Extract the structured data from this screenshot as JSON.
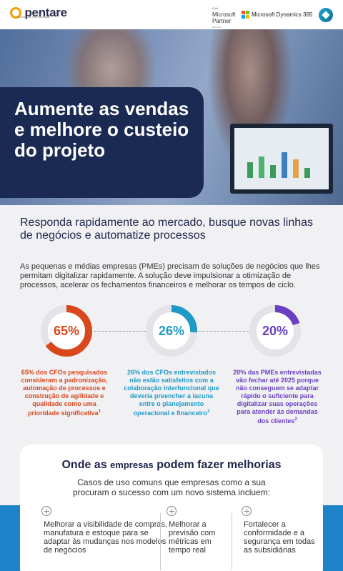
{
  "header": {
    "logo_text": "pentare",
    "logo_tagline": "consultoria em tecnologia",
    "partner_small": "Gold",
    "partner_line1": "Microsoft",
    "partner_line2": "Partner",
    "partner_tiny": "Microsoft",
    "dynamics_label": "Microsoft Dynamics 365",
    "ms_colors": [
      "#f25022",
      "#7fba00",
      "#00a4ef",
      "#ffb900"
    ]
  },
  "hero": {
    "title": "Aumente as vendas e melhore o custeio do projeto"
  },
  "intro": {
    "subtitle": "Responda rapidamente ao mercado, busque novas linhas de negócios e automatize processos",
    "body": "As pequenas e médias empresas (PMEs) precisam de soluções de negócios que lhes permitam digitalizar rapidamente. A solução deve impulsionar a otimização de processos, acelerar os fechamentos financeiros e melhorar os tempos de ciclo."
  },
  "stats": [
    {
      "value": "65%",
      "fraction": 0.65,
      "color": "#d9481c",
      "caption": "65% dos CFOs pesquisados consideram a padronização, automação de processos e construção de agilidade e qualidade como uma prioridade significativa",
      "footnote": "1"
    },
    {
      "value": "26%",
      "fraction": 0.26,
      "color": "#1e9ac6",
      "caption": "26% dos CFOs entrevistados não estão satisfeitos com a colaboração interfuncional que deveria preencher a lacuna entre o planejamento operacional e financeiro",
      "footnote": "2"
    },
    {
      "value": "20%",
      "fraction": 0.2,
      "color": "#6b3fc1",
      "caption": "20% das PMEs entrevistadas vão fechar até 2025 porque não conseguem se adaptar rápido o suficiente para digitalizar suas operações para atender às demandas dos clientes",
      "footnote": "2"
    }
  ],
  "improvements": {
    "title_part1": "Onde as",
    "title_part2": "empresas",
    "title_part3": "podem fazer melhorias",
    "subtitle": "Casos de uso comuns que empresas como a sua procuram o sucesso com um novo sistema incluem:",
    "items": [
      "Melhorar a visibilidade de compras, manufatura e estoque para se adaptar às mudanças nos modelos de negócios",
      "Melhorar a previsão com métricas em tempo real",
      "Fortalecer a conformidade e a segurança em todas as subsidiárias"
    ]
  }
}
